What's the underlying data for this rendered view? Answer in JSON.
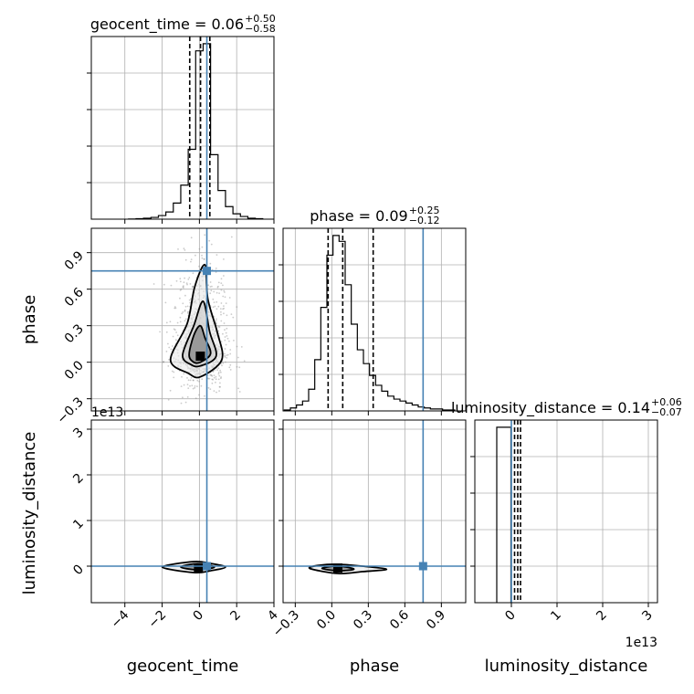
{
  "chart_data": {
    "type": "corner",
    "parameters": [
      "geocent_time",
      "phase",
      "luminosity_distance"
    ],
    "colors": {
      "truth": "#4682b4",
      "hist": "#000000",
      "grid": "#b0b0b0",
      "scatter": "#8c8c8c"
    },
    "ticks": {
      "geocent_time": {
        "range": [
          -5.8,
          4.0
        ],
        "values": [
          -4,
          -2,
          0,
          2,
          4
        ],
        "labels": [
          "−4",
          "−2",
          "0",
          "2",
          "4"
        ]
      },
      "phase": {
        "range": [
          -0.4,
          1.1
        ],
        "values": [
          -0.3,
          0.0,
          0.3,
          0.6,
          0.9
        ],
        "labels": [
          "−0.3",
          "0.0",
          "0.3",
          "0.6",
          "0.9"
        ]
      },
      "luminosity_distance": {
        "range": [
          -0.8,
          3.2
        ],
        "values": [
          0,
          1,
          2,
          3
        ],
        "labels": [
          "0",
          "1",
          "2",
          "3"
        ],
        "offset_text": "1e13"
      }
    },
    "truths": {
      "geocent_time": 0.4,
      "phase": 0.75,
      "luminosity_distance": 0.0
    },
    "titles": {
      "geocent_time": {
        "text": "geocent_time = 0.06",
        "sup": "+0.50",
        "sub": "−0.58"
      },
      "phase": {
        "text": "phase = 0.09",
        "sup": "+0.25",
        "sub": "−0.12"
      },
      "luminosity_distance": {
        "text": "luminosity_distance = 0.14",
        "sup": "+0.06",
        "sub": "−0.07"
      }
    },
    "quantiles": {
      "geocent_time": [
        -0.52,
        0.06,
        0.56
      ],
      "phase": [
        -0.03,
        0.09,
        0.34
      ],
      "luminosity_distance": [
        0.07,
        0.14,
        0.2
      ]
    },
    "histograms": {
      "geocent_time": {
        "edges": [
          -3.8,
          -3.4,
          -3.0,
          -2.6,
          -2.2,
          -1.8,
          -1.4,
          -1.0,
          -0.6,
          -0.2,
          0.2,
          0.6,
          1.0,
          1.4,
          1.8,
          2.2,
          2.6,
          3.0,
          3.4
        ],
        "counts": [
          0.2,
          0.5,
          1,
          2,
          4,
          8,
          18,
          38,
          78,
          188,
          196,
          72,
          32,
          14,
          6,
          3,
          1,
          0.5
        ]
      },
      "phase": {
        "edges": [
          -0.39,
          -0.34,
          -0.29,
          -0.24,
          -0.19,
          -0.14,
          -0.09,
          -0.04,
          0.01,
          0.06,
          0.11,
          0.16,
          0.21,
          0.26,
          0.31,
          0.36,
          0.41,
          0.46,
          0.51,
          0.56,
          0.61,
          0.66,
          0.71,
          0.76,
          0.81,
          0.86,
          0.91,
          0.96,
          1.01
        ],
        "counts": [
          1,
          3,
          6,
          10,
          22,
          52,
          105,
          158,
          178,
          172,
          128,
          88,
          62,
          48,
          36,
          26,
          20,
          15,
          12,
          10,
          8,
          6,
          4,
          3,
          2,
          2,
          1,
          1
        ]
      },
      "luminosity_distance": {
        "edges": [
          -0.32,
          -0.16,
          -0.01
        ],
        "counts": [
          120,
          120
        ]
      }
    },
    "contours": {
      "phase_vs_geocent_time": {
        "outer": [
          [
            0.05,
            -0.12
          ],
          [
            1.2,
            0.02
          ],
          [
            0.95,
            0.25
          ],
          [
            0.45,
            0.52
          ],
          [
            0.3,
            0.8
          ],
          [
            -0.25,
            0.62
          ],
          [
            -0.65,
            0.32
          ],
          [
            -1.55,
            0.02
          ],
          [
            -0.6,
            -0.09
          ]
        ],
        "middle": [
          [
            0.05,
            -0.03
          ],
          [
            0.9,
            0.05
          ],
          [
            0.55,
            0.25
          ],
          [
            0.2,
            0.5
          ],
          [
            -0.3,
            0.3
          ],
          [
            -0.9,
            0.06
          ],
          [
            -0.45,
            -0.02
          ]
        ],
        "inner": [
          [
            0.05,
            0.0
          ],
          [
            0.6,
            0.07
          ],
          [
            0.3,
            0.2
          ],
          [
            0.05,
            0.3
          ],
          [
            -0.3,
            0.22
          ],
          [
            -0.55,
            0.06
          ],
          [
            -0.3,
            0.0
          ]
        ]
      },
      "luminosity_distance_vs_geocent_time": {
        "outer": [
          [
            -2.0,
            -0.02
          ],
          [
            -0.3,
            -0.14
          ],
          [
            0.6,
            -0.1
          ],
          [
            1.4,
            -0.02
          ],
          [
            0.6,
            0.06
          ],
          [
            -0.3,
            0.1
          ]
        ],
        "inner": [
          [
            -1.0,
            -0.02
          ],
          [
            -0.2,
            -0.08
          ],
          [
            0.4,
            -0.06
          ],
          [
            0.8,
            -0.02
          ],
          [
            0.3,
            0.04
          ],
          [
            -0.3,
            0.05
          ]
        ]
      },
      "luminosity_distance_vs_phase": {
        "outer": [
          [
            -0.18,
            -0.05
          ],
          [
            0.05,
            -0.16
          ],
          [
            0.25,
            -0.12
          ],
          [
            0.45,
            -0.07
          ],
          [
            0.25,
            0.0
          ],
          [
            0.05,
            0.04
          ],
          [
            -0.1,
            0.02
          ]
        ],
        "inner": [
          [
            -0.08,
            -0.05
          ],
          [
            0.05,
            -0.1
          ],
          [
            0.18,
            -0.07
          ],
          [
            0.12,
            -0.02
          ],
          [
            0.02,
            0.0
          ]
        ]
      }
    },
    "density_peaks": {
      "phase_vs_geocent_time": [
        0.05,
        0.05
      ],
      "luminosity_distance_vs_geocent_time": [
        -0.05,
        -0.04
      ],
      "luminosity_distance_vs_phase": [
        0.05,
        -0.04
      ]
    }
  }
}
